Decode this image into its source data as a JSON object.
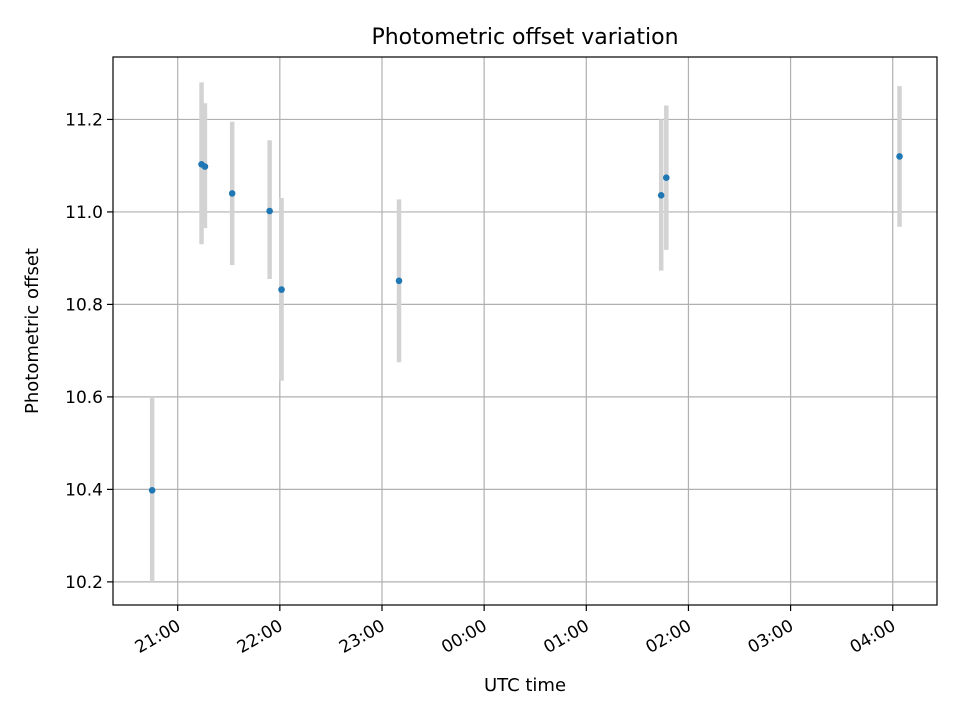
{
  "chart_data": {
    "type": "scatter",
    "title": "Photometric offset variation",
    "xlabel": "UTC time",
    "ylabel": "Photometric offset",
    "x_ticks": [
      "21:00",
      "22:00",
      "23:00",
      "00:00",
      "01:00",
      "02:00",
      "03:00",
      "04:00"
    ],
    "y_ticks": [
      "10.2",
      "10.4",
      "10.6",
      "10.8",
      "11.0",
      "11.2"
    ],
    "xlim": [
      "20:22",
      "04:26"
    ],
    "ylim": [
      10.15,
      11.335
    ],
    "grid": true,
    "points": [
      {
        "time": "20:45",
        "y": 10.398,
        "ylow": 10.2,
        "yhigh": 10.6
      },
      {
        "time": "21:14",
        "y": 11.103,
        "ylow": 10.93,
        "yhigh": 11.28
      },
      {
        "time": "21:16",
        "y": 11.098,
        "ylow": 10.965,
        "yhigh": 11.235
      },
      {
        "time": "21:32",
        "y": 11.04,
        "ylow": 10.885,
        "yhigh": 11.195
      },
      {
        "time": "21:54",
        "y": 11.002,
        "ylow": 10.855,
        "yhigh": 11.155
      },
      {
        "time": "22:01",
        "y": 10.832,
        "ylow": 10.635,
        "yhigh": 11.03
      },
      {
        "time": "23:10",
        "y": 10.851,
        "ylow": 10.675,
        "yhigh": 11.027
      },
      {
        "time": "01:44",
        "y": 11.036,
        "ylow": 10.873,
        "yhigh": 11.2
      },
      {
        "time": "01:47",
        "y": 11.074,
        "ylow": 10.918,
        "yhigh": 11.23
      },
      {
        "time": "04:04",
        "y": 11.12,
        "ylow": 10.968,
        "yhigh": 11.272
      }
    ],
    "colors": {
      "marker": "#1f77b4",
      "errorbar": "#d3d3d3",
      "grid": "#b0b0b0"
    }
  }
}
